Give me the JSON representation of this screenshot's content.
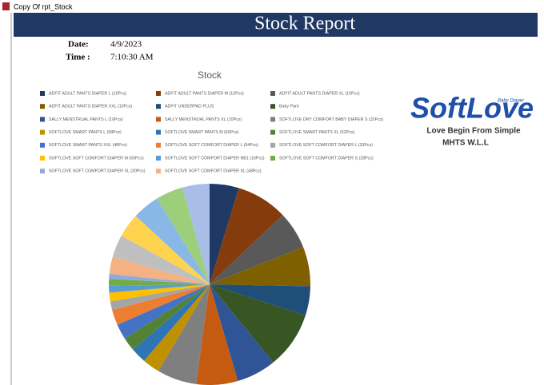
{
  "window": {
    "title": "Copy Of rpt_Stock"
  },
  "header": {
    "title": "Stock Report"
  },
  "info": {
    "date_label": "Date:",
    "date": "4/9/2023",
    "time_label": "Time :",
    "time": "7:10:30 AM"
  },
  "logo": {
    "tag": "Baby Diaper",
    "brand": "SoftLove",
    "slogan": "Love Begin From Simple",
    "company": "MHTS W.L.L"
  },
  "chart_data": {
    "type": "pie",
    "title": "Stock",
    "categories": [
      "ADFIT ADULT PANTS DIAPER L (10Pcs)",
      "ADFIT ADULT PANTS DIAPER M (10Pcs)",
      "ADFIT ADULT PANTS DIAPER XL (10Pcs)",
      "ADFIT ADULT PANTS DIAPER XXL (10Pcs)",
      "ADFIT UNDERPAD PLUS",
      "Baby Pant",
      "SALLY MENSTRUAL PANTS L (10Pcs)",
      "SALLY MENSTRUAL PANTS XL (10Pcs)",
      "SOFTLOVE DRY COMFORT BABY DIAPER S (32Pcs)",
      "SOFTLOVE SMART PANTS L (58Pcs)",
      "SOFTLOVE SMART PANTS M (60Pcs)",
      "SOFTLOVE SMART PANTS XL (52Pcs)",
      "SOFTLOVE SMART PANTS XXL (48Pcs)",
      "SOFTLOVE SOFT COMFORT DIAPER L (54Pcs)",
      "SOFTLOVE SOFT COMFORT DIAPER L (33Pcs)",
      "SOFTLOVE SOFT COMFORT DIAPER M (60Pcs)",
      "SOFTLOVE SOFT COMFORT DIAPER NB1 (16Pcs)",
      "SOFTLOVE SOFT COMFORT DIAPER S (28Pcs)",
      "SOFTLOVE SOFT COMFORT DIAPER XL (30Pcs)",
      "SOFTLOVE SOFT COMFORT DIAPER XL (48Pcs)",
      null,
      null,
      null,
      null,
      null
    ],
    "values": [
      4.7,
      8.3,
      6.1,
      6.4,
      4.7,
      9.2,
      6.4,
      6.7,
      6.4,
      2.8,
      2.5,
      2.2,
      2.5,
      2.5,
      1.4,
      1.4,
      1.1,
      1.1,
      0.8,
      2.8,
      3.6,
      3.9,
      4.4,
      4.4,
      4.4
    ],
    "colors": [
      "#203864",
      "#843c0c",
      "#595959",
      "#7f6000",
      "#1f4e79",
      "#375623",
      "#2f5597",
      "#c55a11",
      "#7f7f7f",
      "#bf9000",
      "#2e75b6",
      "#548235",
      "#4472c4",
      "#ed7d31",
      "#a5a5a5",
      "#ffc000",
      "#5b9bd5",
      "#70ad47",
      "#8faadc",
      "#f4b183",
      "#bfbfbf",
      "#ffd34d",
      "#8ab8e6",
      "#9ccf7a",
      "#a9bde6"
    ]
  }
}
